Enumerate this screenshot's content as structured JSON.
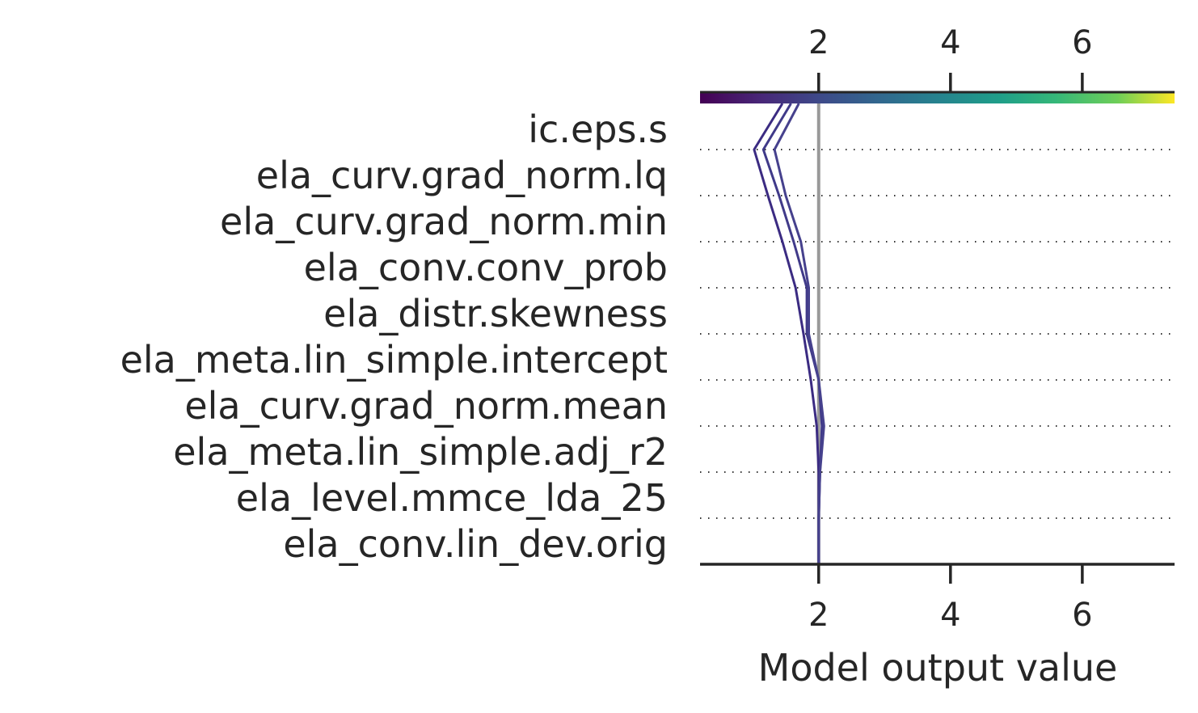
{
  "chart_data": {
    "type": "line",
    "subtype": "decision-plot",
    "xlabel": "Model output value",
    "xlim": [
      0.2,
      7.4
    ],
    "xticks": [
      2,
      4,
      6
    ],
    "base_value": 2.0,
    "colorbar": {
      "position": "top",
      "colormap": "viridis",
      "range": [
        0.2,
        7.4
      ]
    },
    "features": [
      "ic.eps.s",
      "ela_curv.grad_norm.lq",
      "ela_curv.grad_norm.min",
      "ela_conv.conv_prob",
      "ela_distr.skewness",
      "ela_meta.lin_simple.intercept",
      "ela_curv.grad_norm.mean",
      "ela_meta.lin_simple.adj_r2",
      "ela_level.mmce_lda_25",
      "ela_conv.lin_dev.orig"
    ],
    "feature_order_note": "listed top to bottom",
    "series": [
      {
        "color": "#3b2b82",
        "values": [
          2.0,
          2.0,
          2.0,
          1.97,
          1.88,
          1.77,
          1.65,
          1.45,
          1.23,
          1.02,
          1.45
        ]
      },
      {
        "color": "#403a89",
        "values": [
          2.0,
          2.0,
          2.02,
          2.05,
          2.0,
          1.82,
          1.82,
          1.62,
          1.4,
          1.16,
          1.58
        ]
      },
      {
        "color": "#46418d",
        "values": [
          2.0,
          2.0,
          2.02,
          2.08,
          2.0,
          1.85,
          1.85,
          1.73,
          1.5,
          1.33,
          1.7
        ]
      }
    ],
    "grid": "dotted horizontal lines between features"
  }
}
